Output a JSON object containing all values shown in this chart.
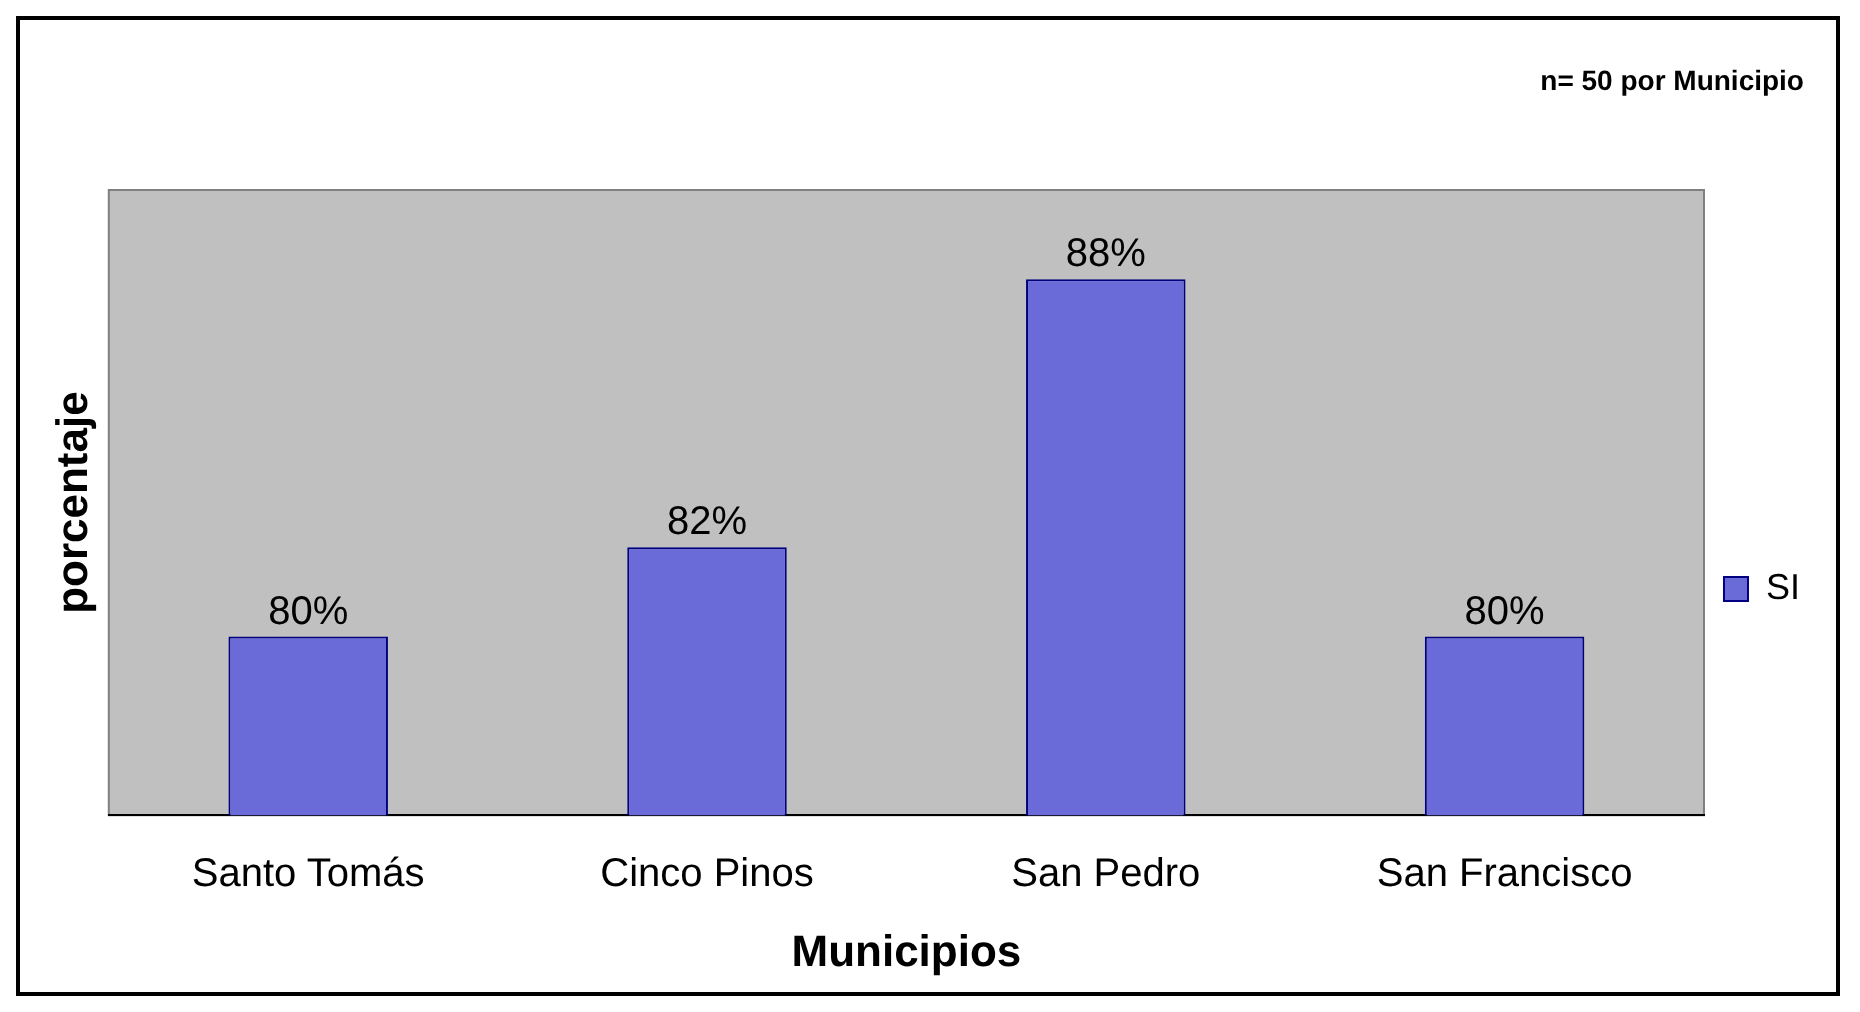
{
  "chart_data": {
    "type": "bar",
    "xlabel": "Municipios",
    "ylabel": "porcentaje",
    "annotations": [
      "n= 50 por Municipio"
    ],
    "categories": [
      "Santo Tomás",
      "Cinco Pinos",
      "San Pedro",
      "San Francisco"
    ],
    "series": [
      {
        "name": "SI",
        "color": "#6a6ad8",
        "values": [
          80,
          82,
          88,
          80
        ]
      }
    ],
    "value_labels": [
      "80%",
      "82%",
      "88%",
      "80%"
    ],
    "data_labels": true,
    "ylim": [
      76,
      90
    ],
    "tick_labels": "x",
    "grid": false,
    "legend": "right"
  }
}
